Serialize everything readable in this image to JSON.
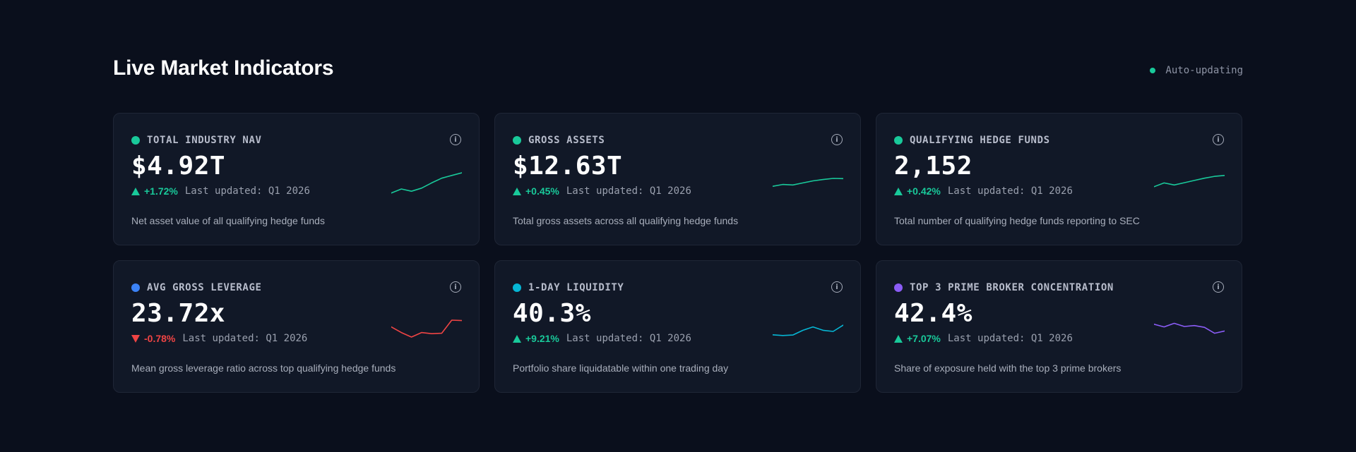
{
  "header": {
    "title": "Live Market Indicators",
    "status": "Auto-updating",
    "status_color": "#19c99a"
  },
  "cards": [
    {
      "label": "TOTAL INDUSTRY NAV",
      "dot_color": "#19c99a",
      "value": "$4.92T",
      "direction": "up",
      "change": "+1.72%",
      "updated": "Last updated: Q1 2026",
      "description": "Net asset value of all qualifying hedge funds",
      "spark_color": "#19c99a",
      "spark": [
        0.1,
        0.28,
        0.18,
        0.32,
        0.55,
        0.76,
        0.88,
        1.0
      ]
    },
    {
      "label": "GROSS ASSETS",
      "dot_color": "#19c99a",
      "value": "$12.63T",
      "direction": "up",
      "change": "+0.45%",
      "updated": "Last updated: Q1 2026",
      "description": "Total gross assets across all qualifying hedge funds",
      "spark_color": "#19c99a",
      "spark": [
        0.4,
        0.48,
        0.46,
        0.55,
        0.64,
        0.7,
        0.75,
        0.74
      ]
    },
    {
      "label": "QUALIFYING HEDGE FUNDS",
      "dot_color": "#19c99a",
      "value": "2,152",
      "direction": "up",
      "change": "+0.42%",
      "updated": "Last updated: Q1 2026",
      "description": "Total number of qualifying hedge funds reporting to SEC",
      "spark_color": "#19c99a",
      "spark": [
        0.38,
        0.55,
        0.46,
        0.56,
        0.66,
        0.76,
        0.84,
        0.88
      ]
    },
    {
      "label": "AVG GROSS LEVERAGE",
      "dot_color": "#3b82f6",
      "value": "23.72x",
      "direction": "down",
      "change": "-0.78%",
      "updated": "Last updated: Q1 2026",
      "description": "Mean gross leverage ratio across top qualifying hedge funds",
      "spark_color": "#ef4444",
      "spark": [
        0.7,
        0.45,
        0.25,
        0.45,
        0.4,
        0.42,
        1.0,
        0.98
      ]
    },
    {
      "label": "1-DAY LIQUIDITY",
      "dot_color": "#06b6d4",
      "value": "40.3%",
      "direction": "up",
      "change": "+9.21%",
      "updated": "Last updated: Q1 2026",
      "description": "Portfolio share liquidatable within one trading day",
      "spark_color": "#06b6d4",
      "spark": [
        0.35,
        0.32,
        0.34,
        0.55,
        0.7,
        0.55,
        0.5,
        0.78
      ]
    },
    {
      "label": "TOP 3 PRIME BROKER CONCENTRATION",
      "dot_color": "#8b5cf6",
      "value": "42.4%",
      "direction": "up",
      "change": "+7.07%",
      "updated": "Last updated: Q1 2026",
      "description": "Share of exposure held with the top 3 prime brokers",
      "spark_color": "#8b5cf6",
      "spark": [
        0.82,
        0.7,
        0.86,
        0.72,
        0.76,
        0.68,
        0.42,
        0.52
      ]
    }
  ]
}
